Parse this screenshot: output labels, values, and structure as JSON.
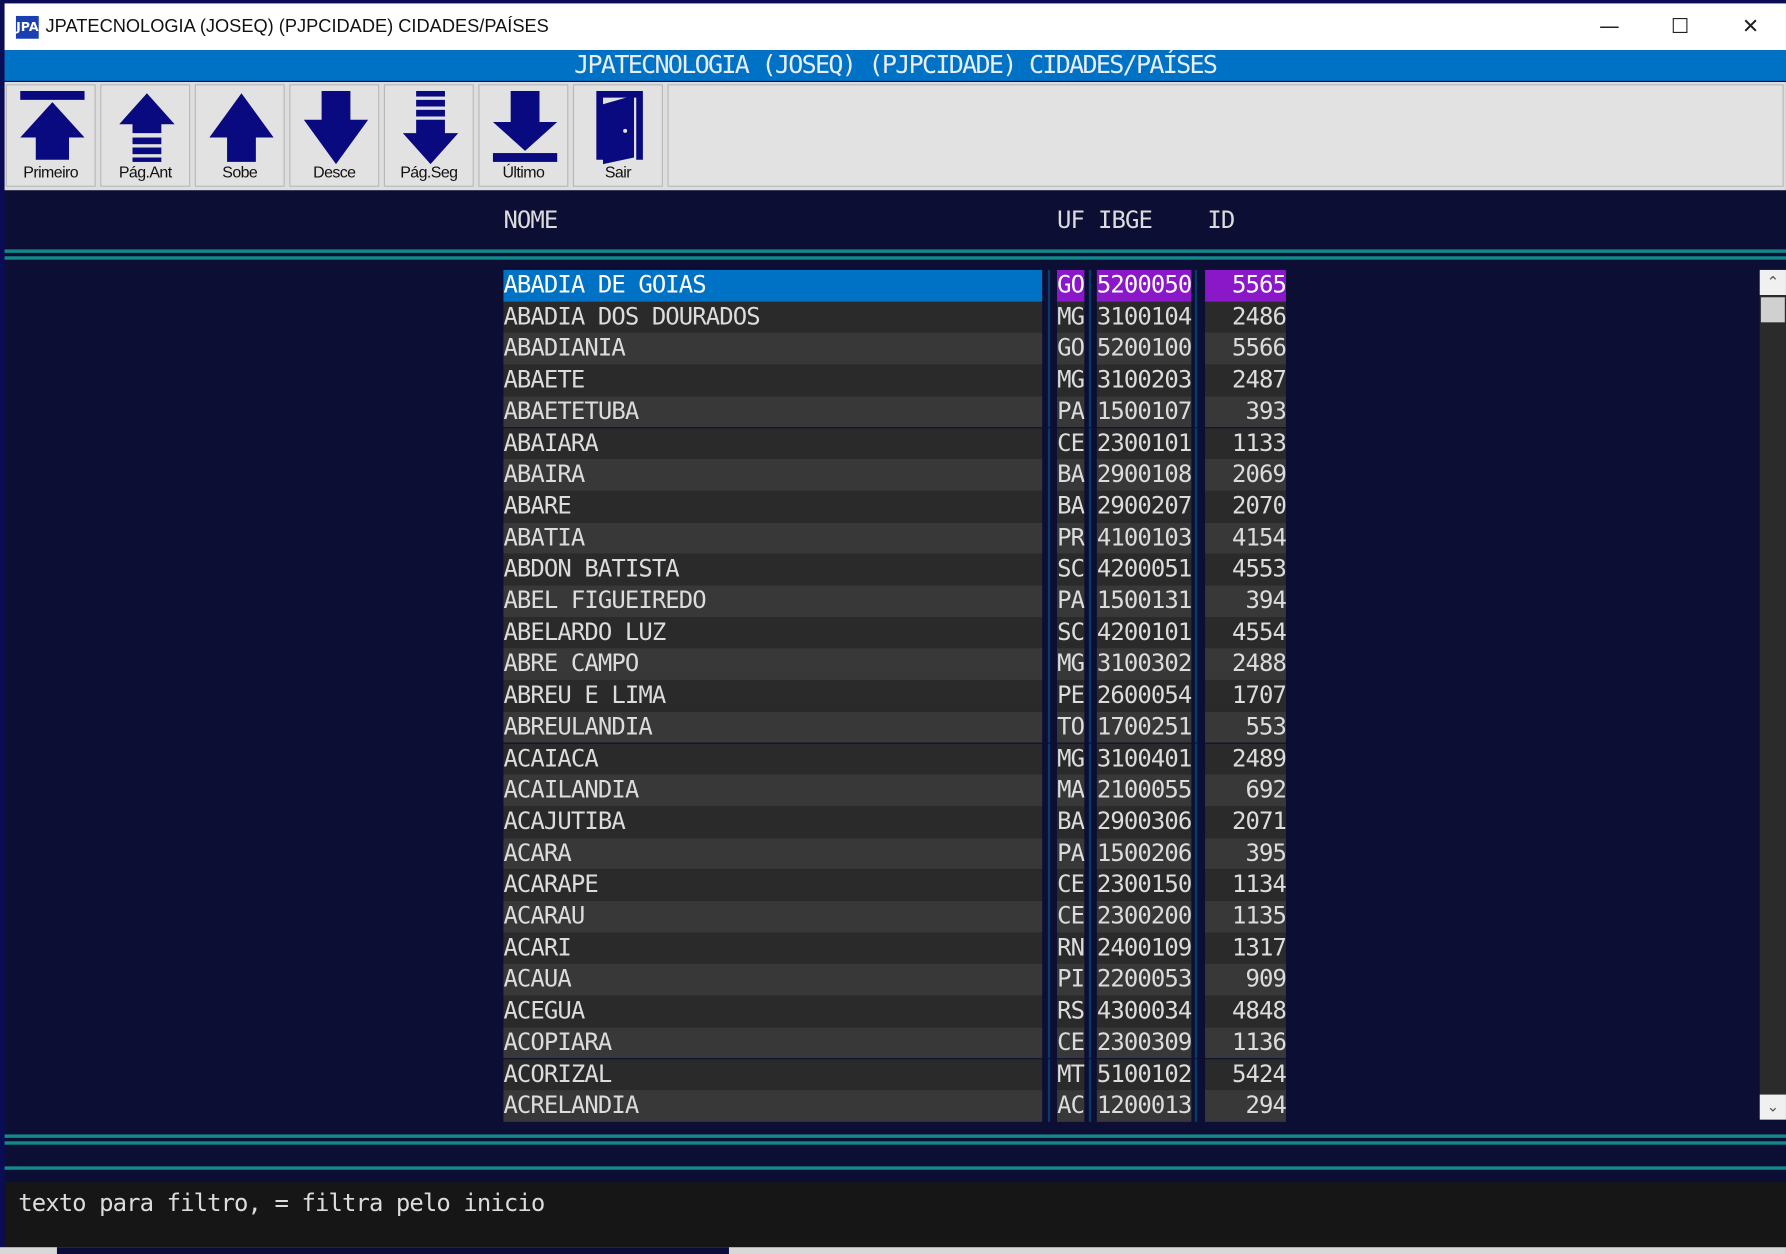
{
  "window": {
    "title": "JPATECNOLOGIA (JOSEQ) (PJPCIDADE) CIDADES/PAÍSES",
    "icon_text": "JPA"
  },
  "header": {
    "title": "JPATECNOLOGIA (JOSEQ) (PJPCIDADE) CIDADES/PAÍSES"
  },
  "toolbar": [
    {
      "label": "Primeiro",
      "icon": "arrow-up-to-top-icon"
    },
    {
      "label": "Pág.Ant",
      "icon": "page-up-icon"
    },
    {
      "label": "Sobe",
      "icon": "arrow-up-icon"
    },
    {
      "label": "Desce",
      "icon": "arrow-down-icon"
    },
    {
      "label": "Pág.Seg",
      "icon": "page-down-icon"
    },
    {
      "label": "Último",
      "icon": "arrow-down-to-bottom-icon"
    },
    {
      "label": "Sair",
      "icon": "door-exit-icon"
    }
  ],
  "columns": {
    "nome": "NOME",
    "uf": "UF",
    "ibge": "IBGE",
    "id": "ID"
  },
  "colors": {
    "accent": "#0072c6",
    "highlight": "#8a17c8",
    "teal": "#138a8a",
    "background": "#0c0f33"
  },
  "rows": [
    {
      "nome": "ABADIA DE GOIAS",
      "uf": "GO",
      "ibge": "5200050",
      "id": "5565",
      "selected": true
    },
    {
      "nome": "ABADIA DOS DOURADOS",
      "uf": "MG",
      "ibge": "3100104",
      "id": "2486"
    },
    {
      "nome": "ABADIANIA",
      "uf": "GO",
      "ibge": "5200100",
      "id": "5566"
    },
    {
      "nome": "ABAETE",
      "uf": "MG",
      "ibge": "3100203",
      "id": "2487"
    },
    {
      "nome": "ABAETETUBA",
      "uf": "PA",
      "ibge": "1500107",
      "id": "393"
    },
    {
      "nome": "ABAIARA",
      "uf": "CE",
      "ibge": "2300101",
      "id": "1133"
    },
    {
      "nome": "ABAIRA",
      "uf": "BA",
      "ibge": "2900108",
      "id": "2069"
    },
    {
      "nome": "ABARE",
      "uf": "BA",
      "ibge": "2900207",
      "id": "2070"
    },
    {
      "nome": "ABATIA",
      "uf": "PR",
      "ibge": "4100103",
      "id": "4154"
    },
    {
      "nome": "ABDON BATISTA",
      "uf": "SC",
      "ibge": "4200051",
      "id": "4553"
    },
    {
      "nome": "ABEL FIGUEIREDO",
      "uf": "PA",
      "ibge": "1500131",
      "id": "394"
    },
    {
      "nome": "ABELARDO LUZ",
      "uf": "SC",
      "ibge": "4200101",
      "id": "4554"
    },
    {
      "nome": "ABRE CAMPO",
      "uf": "MG",
      "ibge": "3100302",
      "id": "2488"
    },
    {
      "nome": "ABREU E LIMA",
      "uf": "PE",
      "ibge": "2600054",
      "id": "1707"
    },
    {
      "nome": "ABREULANDIA",
      "uf": "TO",
      "ibge": "1700251",
      "id": "553"
    },
    {
      "nome": "ACAIACA",
      "uf": "MG",
      "ibge": "3100401",
      "id": "2489"
    },
    {
      "nome": "ACAILANDIA",
      "uf": "MA",
      "ibge": "2100055",
      "id": "692"
    },
    {
      "nome": "ACAJUTIBA",
      "uf": "BA",
      "ibge": "2900306",
      "id": "2071"
    },
    {
      "nome": "ACARA",
      "uf": "PA",
      "ibge": "1500206",
      "id": "395"
    },
    {
      "nome": "ACARAPE",
      "uf": "CE",
      "ibge": "2300150",
      "id": "1134"
    },
    {
      "nome": "ACARAU",
      "uf": "CE",
      "ibge": "2300200",
      "id": "1135"
    },
    {
      "nome": "ACARI",
      "uf": "RN",
      "ibge": "2400109",
      "id": "1317"
    },
    {
      "nome": "ACAUA",
      "uf": "PI",
      "ibge": "2200053",
      "id": "909"
    },
    {
      "nome": "ACEGUA",
      "uf": "RS",
      "ibge": "4300034",
      "id": "4848"
    },
    {
      "nome": "ACOPIARA",
      "uf": "CE",
      "ibge": "2300309",
      "id": "1136"
    },
    {
      "nome": "ACORIZAL",
      "uf": "MT",
      "ibge": "5100102",
      "id": "5424"
    },
    {
      "nome": "ACRELANDIA",
      "uf": "AC",
      "ibge": "1200013",
      "id": "294"
    }
  ],
  "status": {
    "hint": "texto para filtro, = filtra pelo inicio"
  }
}
